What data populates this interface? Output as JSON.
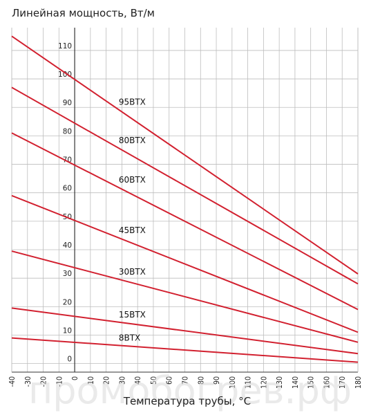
{
  "chart_data": {
    "type": "line",
    "title": "Линейная мощность, Вт/м",
    "xlabel": "Температура трубы, °C",
    "ylabel": "Линейная мощность, Вт/м",
    "x_ticks": [
      -40,
      -30,
      -20,
      -10,
      0,
      10,
      20,
      30,
      40,
      50,
      60,
      70,
      80,
      90,
      100,
      110,
      120,
      130,
      140,
      150,
      160,
      170,
      180
    ],
    "y_ticks": [
      0,
      10,
      20,
      30,
      40,
      50,
      60,
      70,
      80,
      90,
      100,
      110
    ],
    "xlim": [
      -40,
      180
    ],
    "ylim": [
      -3,
      118
    ],
    "grid": true,
    "line_color": "#d2202f",
    "series": [
      {
        "name": "95BTX",
        "points": [
          [
            -40,
            115
          ],
          [
            180,
            31.5
          ]
        ]
      },
      {
        "name": "80BTX",
        "points": [
          [
            -40,
            97
          ],
          [
            180,
            28
          ]
        ]
      },
      {
        "name": "60BTX",
        "points": [
          [
            -40,
            81
          ],
          [
            180,
            19
          ]
        ]
      },
      {
        "name": "45BTX",
        "points": [
          [
            -40,
            59
          ],
          [
            180,
            11
          ]
        ]
      },
      {
        "name": "30BTX",
        "points": [
          [
            -40,
            39.5
          ],
          [
            180,
            7.5
          ]
        ]
      },
      {
        "name": "15BTX",
        "points": [
          [
            -40,
            19.5
          ],
          [
            180,
            3.5
          ]
        ]
      },
      {
        "name": "8BTX",
        "points": [
          [
            -40,
            9
          ],
          [
            180,
            0.5
          ]
        ]
      }
    ]
  },
  "watermark": "промобогрев.рф"
}
